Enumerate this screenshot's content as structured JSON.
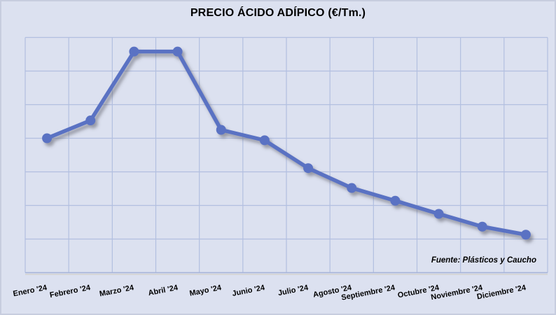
{
  "title": "PRECIO ÁCIDO ADÍPICO (€/Tm.)",
  "source_note": "Fuente: Plásticos y Caucho",
  "colors": {
    "background": "#dce1f0",
    "frame_border": "#c7cddf",
    "gridline": "#b2bfe0",
    "axis_line": "#a6b3d8",
    "series_line": "#5a72c3",
    "marker_fill": "#5a72c3",
    "shadow": "#52525c",
    "text": "#000000"
  },
  "chart_data": {
    "type": "line",
    "title": "PRECIO ÁCIDO ADÍPICO (€/Tm.)",
    "categories": [
      "Enero '24",
      "Febrero '24",
      "Marzo '24",
      "Abril '24",
      "Mayo '24",
      "Junio '24",
      "Julio '24",
      "Agosto '24",
      "Septiembre '24",
      "Octubre '24",
      "Noviembre '24",
      "Diciembre '24"
    ],
    "series": [
      {
        "name": "Precio ácido adípico (€/Tm.)",
        "values": [
          4.0,
          4.53,
          6.58,
          6.58,
          4.25,
          3.94,
          3.11,
          2.52,
          2.14,
          1.75,
          1.37,
          1.13
        ]
      }
    ],
    "xlabel": "",
    "ylabel": "",
    "y_axis_labels_visible": false,
    "values_unit": "gridline rows above bottom axis (y-axis is unlabeled in the chart)",
    "ylim": [
      0,
      7
    ],
    "grid": {
      "visible": true,
      "h_rows": 7,
      "v_cols": 12
    },
    "legend": "none",
    "marker": "circle",
    "line_width": 5.5,
    "marker_radius": 7
  }
}
